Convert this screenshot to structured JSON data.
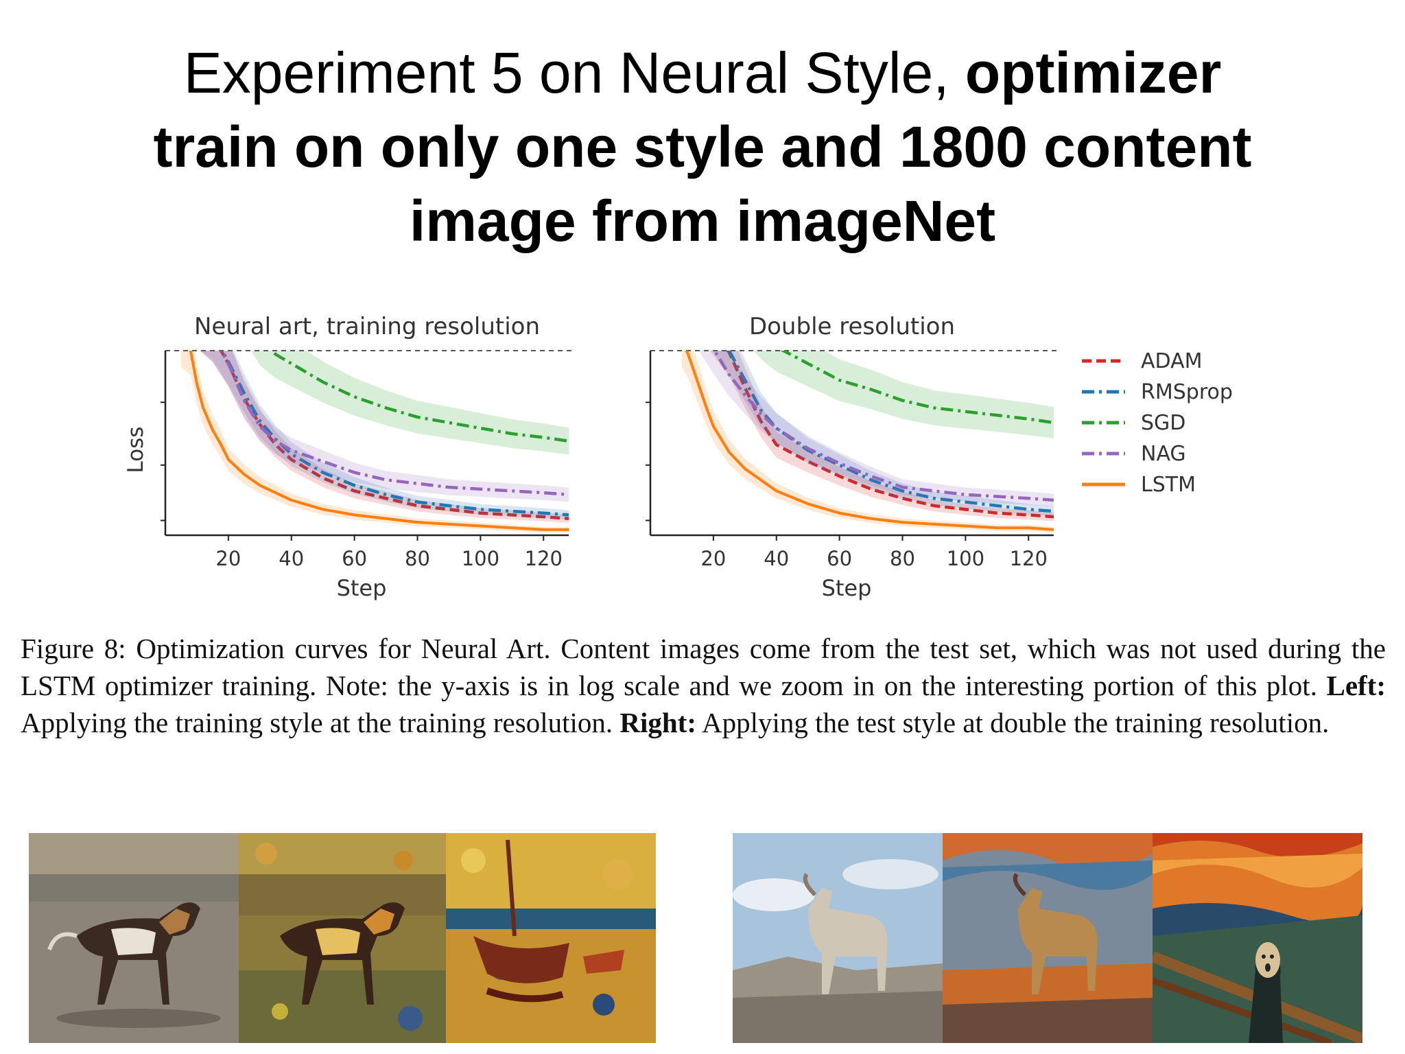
{
  "slide": {
    "title_light": "Experiment 5 on Neural Style, ",
    "title_bold_1": "optimizer",
    "title_bold_2": "train on only one style and 1800 content",
    "title_bold_3": "image from imageNet"
  },
  "caption": {
    "part1": "Figure 8: Optimization curves for Neural Art. Content images come from the test set, which was not used during the LSTM optimizer training. Note: the y-axis is in log scale and we zoom in on the interesting portion of this plot. ",
    "left_label": "Left:",
    "part2": " Applying the training style at the training resolution. ",
    "right_label": "Right:",
    "part3": " Applying the test style at double the training resolution."
  },
  "images": [
    {
      "name": "content-dog",
      "subject": "dog photo on sand"
    },
    {
      "name": "styled-dog",
      "subject": "dog in training style"
    },
    {
      "name": "style-boat",
      "subject": "training style painting, boat"
    },
    {
      "name": "content-goat",
      "subject": "goat photo on rocks"
    },
    {
      "name": "styled-goat",
      "subject": "goat in test style"
    },
    {
      "name": "style-scream",
      "subject": "test style painting, The Scream"
    }
  ],
  "colors": {
    "ADAM": "#d62728",
    "RMSprop": "#1f77b4",
    "SGD": "#2ca02c",
    "NAG": "#9467bd",
    "LSTM": "#ff7f0e"
  },
  "chart_data": [
    {
      "type": "line",
      "title": "Neural art, training resolution",
      "xlabel": "Step",
      "ylabel": "Loss",
      "yscale": "log",
      "xlim": [
        0,
        128
      ],
      "ylim": [
        0,
        1
      ],
      "xticks": [
        20,
        40,
        60,
        80,
        100,
        120
      ],
      "grid": false,
      "legend": "none",
      "series": [
        {
          "name": "ADAM",
          "style": "dashed",
          "x": [
            5,
            15,
            20,
            25,
            30,
            35,
            40,
            50,
            60,
            70,
            80,
            90,
            100,
            110,
            120,
            128
          ],
          "y": [
            1.25,
            1.08,
            0.93,
            0.74,
            0.6,
            0.49,
            0.41,
            0.31,
            0.24,
            0.2,
            0.16,
            0.14,
            0.12,
            0.11,
            0.1,
            0.09
          ]
        },
        {
          "name": "RMSprop",
          "style": "dashdot",
          "x": [
            5,
            15,
            20,
            25,
            30,
            35,
            40,
            50,
            60,
            70,
            80,
            90,
            100,
            110,
            120,
            128
          ],
          "y": [
            1.25,
            1.09,
            0.94,
            0.77,
            0.62,
            0.52,
            0.44,
            0.34,
            0.27,
            0.22,
            0.18,
            0.16,
            0.14,
            0.13,
            0.12,
            0.11
          ]
        },
        {
          "name": "SGD",
          "style": "dashdot",
          "x": [
            5,
            15,
            20,
            25,
            30,
            35,
            40,
            50,
            60,
            70,
            80,
            90,
            100,
            110,
            120,
            128
          ],
          "y": [
            1.6,
            1.45,
            1.35,
            1.22,
            1.06,
            0.98,
            0.93,
            0.83,
            0.75,
            0.69,
            0.64,
            0.61,
            0.58,
            0.55,
            0.53,
            0.51
          ]
        },
        {
          "name": "NAG",
          "style": "dashdot",
          "x": [
            5,
            15,
            20,
            25,
            30,
            35,
            40,
            50,
            60,
            70,
            80,
            90,
            100,
            110,
            120,
            128
          ],
          "y": [
            1.25,
            1.08,
            0.93,
            0.73,
            0.59,
            0.51,
            0.46,
            0.4,
            0.34,
            0.3,
            0.28,
            0.26,
            0.25,
            0.24,
            0.23,
            0.22
          ]
        },
        {
          "name": "LSTM",
          "style": "solid",
          "x": [
            5,
            8,
            10,
            12,
            15,
            18,
            20,
            25,
            30,
            40,
            50,
            60,
            70,
            80,
            90,
            100,
            110,
            120,
            128
          ],
          "y": [
            1.05,
            1.0,
            0.82,
            0.69,
            0.57,
            0.48,
            0.41,
            0.33,
            0.27,
            0.19,
            0.14,
            0.11,
            0.09,
            0.07,
            0.06,
            0.05,
            0.04,
            0.03,
            0.03
          ]
        }
      ]
    },
    {
      "type": "line",
      "title": "Double resolution",
      "xlabel": "Step",
      "ylabel": "",
      "yscale": "log",
      "xlim": [
        0,
        128
      ],
      "ylim": [
        0,
        1
      ],
      "xticks": [
        20,
        40,
        60,
        80,
        100,
        120
      ],
      "grid": false,
      "legend": "right",
      "series": [
        {
          "name": "ADAM",
          "style": "dashed",
          "x": [
            10,
            15,
            20,
            25,
            30,
            35,
            40,
            50,
            60,
            70,
            80,
            90,
            100,
            110,
            120,
            128
          ],
          "y": [
            1.3,
            1.25,
            1.12,
            0.99,
            0.8,
            0.62,
            0.49,
            0.4,
            0.32,
            0.25,
            0.2,
            0.16,
            0.14,
            0.12,
            0.11,
            0.1
          ]
        },
        {
          "name": "RMSprop",
          "style": "dashdot",
          "x": [
            10,
            15,
            20,
            25,
            30,
            35,
            40,
            50,
            60,
            70,
            80,
            90,
            100,
            110,
            120,
            128
          ],
          "y": [
            1.3,
            1.25,
            1.14,
            1.0,
            0.84,
            0.68,
            0.58,
            0.46,
            0.38,
            0.3,
            0.24,
            0.2,
            0.18,
            0.16,
            0.14,
            0.13
          ]
        },
        {
          "name": "SGD",
          "style": "dashdot",
          "x": [
            10,
            15,
            20,
            25,
            30,
            35,
            40,
            50,
            60,
            70,
            80,
            90,
            100,
            110,
            120,
            128
          ],
          "y": [
            1.6,
            1.55,
            1.45,
            1.35,
            1.21,
            1.1,
            1.02,
            0.93,
            0.84,
            0.79,
            0.73,
            0.69,
            0.67,
            0.65,
            0.63,
            0.61
          ]
        },
        {
          "name": "NAG",
          "style": "dashdot",
          "x": [
            10,
            15,
            20,
            25,
            30,
            35,
            40,
            50,
            60,
            70,
            80,
            90,
            100,
            110,
            120,
            128
          ],
          "y": [
            1.3,
            1.16,
            1.01,
            0.87,
            0.76,
            0.66,
            0.58,
            0.47,
            0.39,
            0.32,
            0.26,
            0.24,
            0.22,
            0.21,
            0.2,
            0.19
          ]
        },
        {
          "name": "LSTM",
          "style": "solid",
          "x": [
            10,
            12,
            15,
            18,
            20,
            25,
            30,
            40,
            50,
            60,
            70,
            80,
            90,
            100,
            110,
            120,
            128
          ],
          "y": [
            1.05,
            0.98,
            0.83,
            0.68,
            0.59,
            0.45,
            0.36,
            0.24,
            0.17,
            0.12,
            0.09,
            0.07,
            0.06,
            0.05,
            0.04,
            0.04,
            0.03
          ]
        }
      ]
    }
  ]
}
